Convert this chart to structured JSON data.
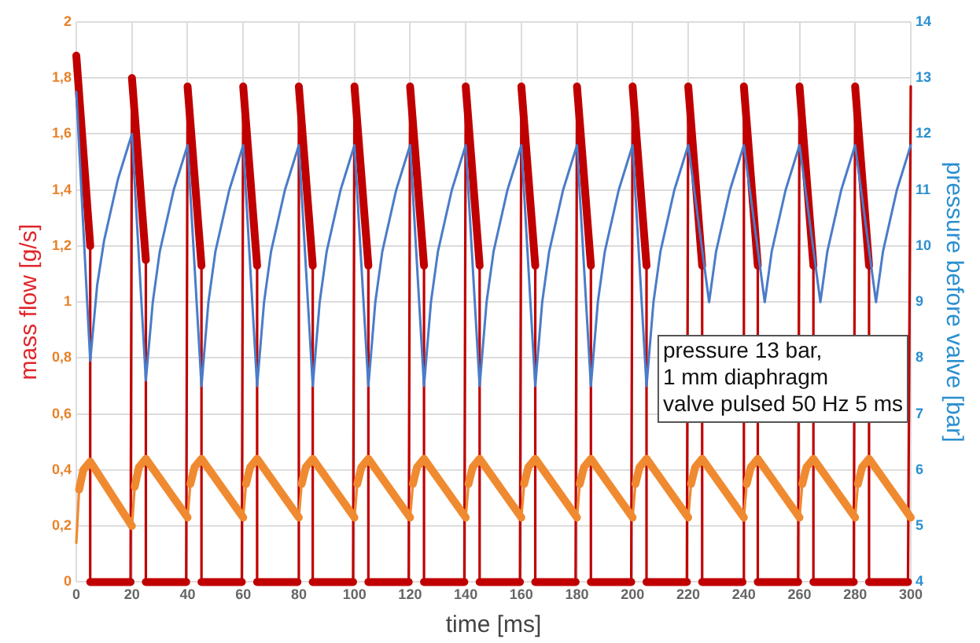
{
  "chart_data": {
    "type": "line",
    "xlabel": "time [ms]",
    "ylabel": "mass flow [g/s]",
    "y2label": "pressure before valve [bar]",
    "xlim": [
      0,
      300
    ],
    "xticks": [
      0,
      20,
      40,
      60,
      80,
      100,
      120,
      140,
      160,
      180,
      200,
      220,
      240,
      260,
      280,
      300
    ],
    "ylim": [
      0,
      2
    ],
    "yticks": [
      0,
      {
        "value": 0.2,
        "label": "0,2"
      },
      {
        "value": 0.4,
        "label": "0,4"
      },
      {
        "value": 0.6,
        "label": "0,6"
      },
      {
        "value": 0.8,
        "label": "0,8"
      },
      1,
      {
        "value": 1.2,
        "label": "1,2"
      },
      {
        "value": 1.4,
        "label": "1,4"
      },
      {
        "value": 1.6,
        "label": "1,6"
      },
      {
        "value": 1.8,
        "label": "1,8"
      },
      2
    ],
    "y2lim": [
      4,
      14
    ],
    "y2ticks": [
      4,
      5,
      6,
      7,
      8,
      9,
      10,
      11,
      12,
      13,
      14
    ],
    "grid": true,
    "legend": false,
    "line_style": "solid",
    "annotations": [
      "pressure 13 bar,\n1 mm diaphragm\nvalve pulsed 50 Hz 5 ms"
    ],
    "series": [
      {
        "color": "#4a7cc9",
        "axis": "y2",
        "x": [
          0,
          5,
          7.5,
          10,
          15,
          20,
          25,
          27.5,
          30,
          35,
          40,
          45,
          47.5,
          50,
          55,
          60,
          65,
          67.5,
          70,
          75,
          80,
          85,
          87.5,
          90,
          95,
          100,
          105,
          107.5,
          110,
          115,
          120,
          125,
          127.5,
          130,
          135,
          140,
          145,
          147.5,
          150,
          155,
          160,
          165,
          167.5,
          170,
          175,
          180,
          185,
          187.5,
          190,
          195,
          200,
          205,
          207.5,
          210,
          215,
          220,
          225,
          227.5,
          230,
          235,
          240,
          245,
          247.5,
          250,
          255,
          260,
          265,
          267.5,
          270,
          275,
          280,
          285,
          287.5,
          290,
          295,
          300
        ],
        "values": [
          12.75,
          7.95,
          9.3,
          10.1,
          11.2,
          12.0,
          7.6,
          9.0,
          9.9,
          11.0,
          11.8,
          7.5,
          9.0,
          9.9,
          11.0,
          11.8,
          7.5,
          9.0,
          9.9,
          11.0,
          11.8,
          7.5,
          9.0,
          9.9,
          11.0,
          11.8,
          7.5,
          9.0,
          9.9,
          11.0,
          11.8,
          7.5,
          9.0,
          9.9,
          11.0,
          11.8,
          7.5,
          9.0,
          9.9,
          11.0,
          11.8,
          7.5,
          9.0,
          9.9,
          11.0,
          11.8,
          7.5,
          9.0,
          9.9,
          11.0,
          11.8,
          7.5,
          9.0,
          9.9,
          11.0,
          11.8,
          null,
          9.0,
          9.9,
          11.0,
          11.8,
          null,
          9.0,
          9.9,
          11.0,
          11.8,
          null,
          9.0,
          9.9,
          11.0,
          11.8,
          null,
          9.0,
          9.9,
          11.0,
          11.8
        ]
      },
      {
        "color": "#f08a30",
        "x": [
          0,
          1,
          2.5,
          5,
          20,
          21,
          22.5,
          25,
          40,
          41,
          42.5,
          45,
          60,
          61,
          62.5,
          65,
          80,
          81,
          82.5,
          85,
          100,
          101,
          102.5,
          105,
          120,
          121,
          122.5,
          125,
          140,
          141,
          142.5,
          145,
          160,
          161,
          162.5,
          165,
          180,
          181,
          182.5,
          185,
          200,
          201,
          202.5,
          205,
          220,
          221,
          222.5,
          225,
          240,
          241,
          242.5,
          245,
          260,
          261,
          262.5,
          265,
          280,
          281,
          282.5,
          285,
          300
        ],
        "values": [
          0.14,
          0.33,
          0.4,
          0.43,
          0.2,
          0.34,
          0.41,
          0.44,
          0.23,
          0.35,
          0.41,
          0.44,
          0.23,
          0.35,
          0.41,
          0.44,
          0.23,
          0.35,
          0.41,
          0.44,
          0.23,
          0.35,
          0.41,
          0.44,
          0.23,
          0.35,
          0.41,
          0.44,
          0.23,
          0.35,
          0.41,
          0.44,
          0.23,
          0.35,
          0.41,
          0.44,
          0.23,
          0.35,
          0.41,
          0.44,
          0.23,
          0.35,
          0.41,
          0.44,
          0.23,
          0.35,
          0.41,
          0.44,
          0.23,
          0.35,
          0.41,
          0.44,
          0.23,
          0.35,
          0.41,
          0.44,
          0.23,
          0.35,
          0.41,
          0.44,
          0.23
        ]
      },
      {
        "color": "#c00000",
        "x": [
          0,
          5,
          5,
          19.5,
          20,
          25,
          25,
          39.5,
          40,
          45,
          45,
          59.5,
          60,
          65,
          65,
          79.5,
          80,
          85,
          85,
          99.5,
          100,
          105,
          105,
          119.5,
          120,
          125,
          125,
          139.5,
          140,
          145,
          145,
          159.5,
          160,
          165,
          165,
          179.5,
          180,
          185,
          185,
          199.5,
          200,
          205,
          205,
          219.5,
          220,
          225,
          225,
          239.5,
          240,
          245,
          245,
          259.5,
          260,
          265,
          265,
          279.5,
          280,
          285,
          285,
          299,
          300
        ],
        "values": [
          1.88,
          1.2,
          0,
          0,
          1.8,
          1.15,
          0,
          0,
          1.77,
          1.13,
          0,
          0,
          1.77,
          1.13,
          0,
          0,
          1.77,
          1.13,
          0,
          0,
          1.77,
          1.13,
          0,
          0,
          1.77,
          1.13,
          0,
          0,
          1.77,
          1.13,
          0,
          0,
          1.77,
          1.13,
          0,
          0,
          1.77,
          1.13,
          0,
          0,
          1.77,
          1.13,
          0,
          0,
          1.77,
          1.13,
          0,
          0,
          1.77,
          1.13,
          0,
          0,
          1.77,
          1.13,
          0,
          0,
          1.77,
          1.13,
          0,
          0,
          1.77
        ]
      }
    ]
  }
}
